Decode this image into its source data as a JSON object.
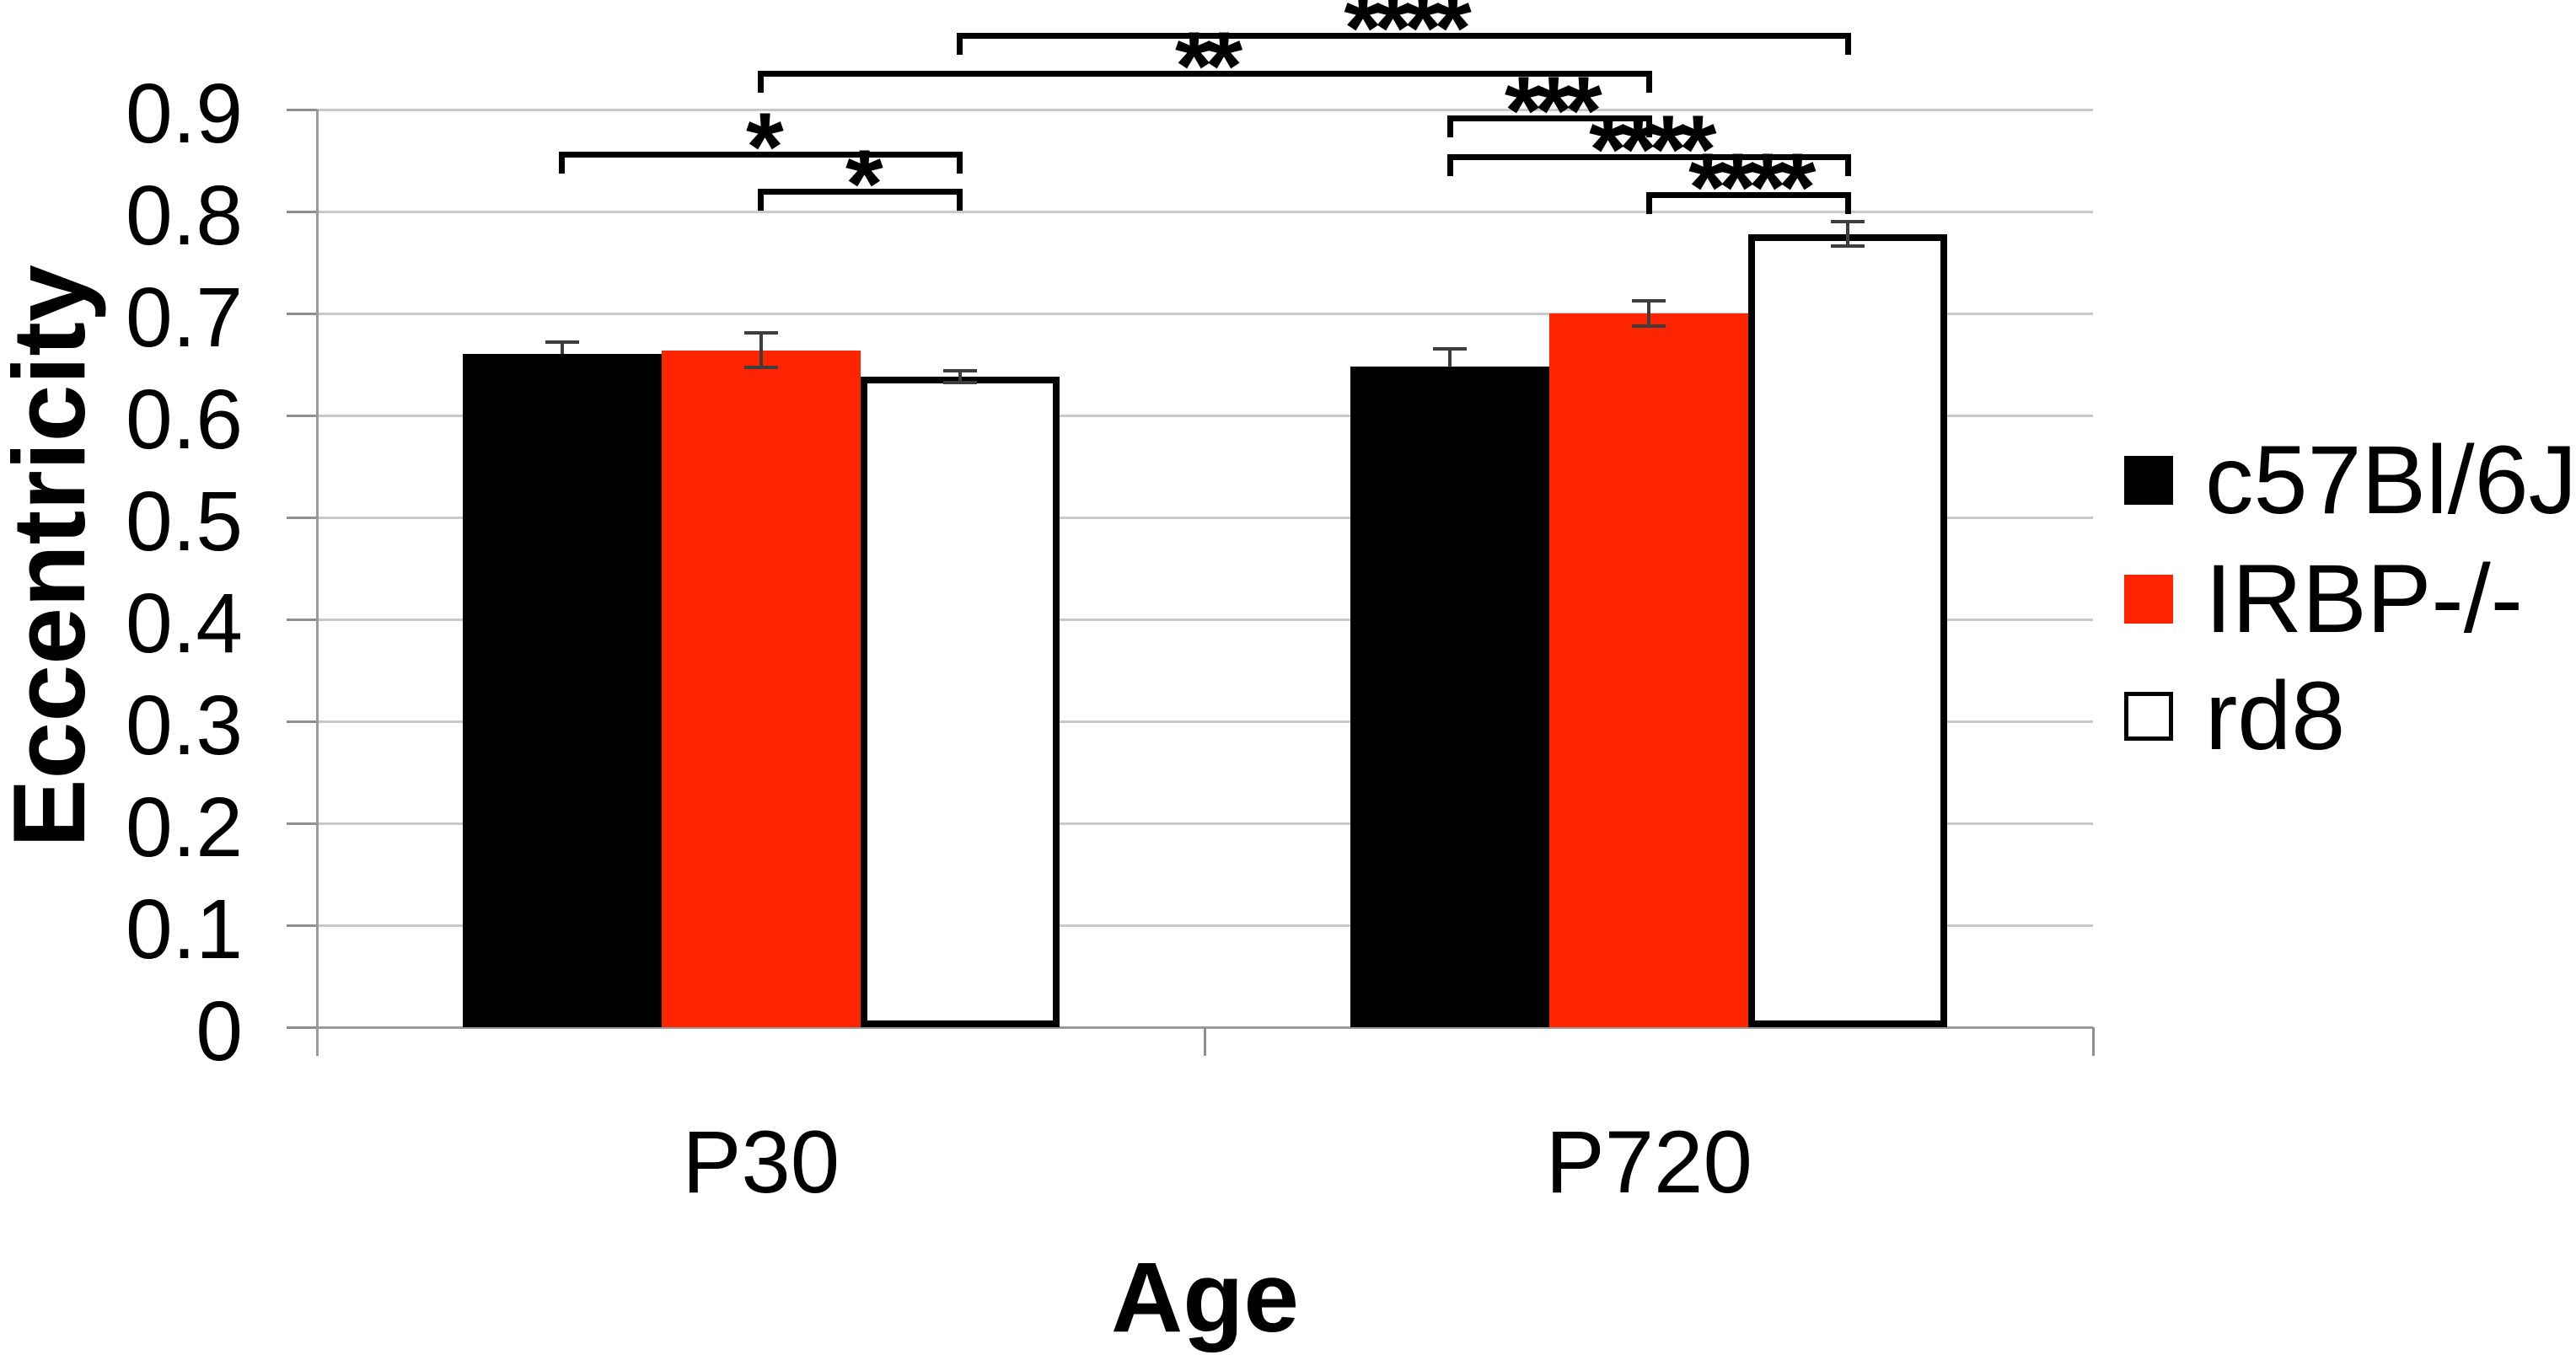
{
  "chart_data": {
    "type": "bar",
    "title": "",
    "xlabel": "Age",
    "ylabel": "Eccentricity",
    "categories": [
      "P30",
      "P720"
    ],
    "series": [
      {
        "name": "c57Bl/6J",
        "color": "#000000",
        "outline": "#000000",
        "values": [
          0.66,
          0.648
        ],
        "errors": [
          0.012,
          0.017
        ]
      },
      {
        "name": "IRBP-/-",
        "color": "#ff2400",
        "outline": "#ff2400",
        "values": [
          0.664,
          0.7
        ],
        "errors": [
          0.017,
          0.012
        ]
      },
      {
        "name": "rd8",
        "color": "#ffffff",
        "outline": "#000000",
        "values": [
          0.638,
          0.778
        ],
        "errors": [
          0.006,
          0.012
        ]
      }
    ],
    "ylim": [
      0,
      0.9
    ],
    "ytick_step": 0.1,
    "ytick_labels": [
      "0",
      "0.1",
      "0.2",
      "0.3",
      "0.4",
      "0.5",
      "0.6",
      "0.7",
      "0.8",
      "0.9"
    ],
    "grid": "horizontal",
    "legend_position": "right",
    "significance": [
      {
        "label": "*",
        "a": {
          "category": "P30",
          "series": "c57Bl/6J"
        },
        "b": {
          "category": "P30",
          "series": "rd8"
        }
      },
      {
        "label": "*",
        "a": {
          "category": "P30",
          "series": "IRBP-/-"
        },
        "b": {
          "category": "P30",
          "series": "rd8"
        }
      },
      {
        "label": "***",
        "a": {
          "category": "P720",
          "series": "c57Bl/6J"
        },
        "b": {
          "category": "P720",
          "series": "IRBP-/-"
        }
      },
      {
        "label": "****",
        "a": {
          "category": "P720",
          "series": "c57Bl/6J"
        },
        "b": {
          "category": "P720",
          "series": "rd8"
        }
      },
      {
        "label": "****",
        "a": {
          "category": "P720",
          "series": "IRBP-/-"
        },
        "b": {
          "category": "P720",
          "series": "rd8"
        }
      },
      {
        "label": "**",
        "a": {
          "category": "P30",
          "series": "IRBP-/-"
        },
        "b": {
          "category": "P720",
          "series": "IRBP-/-"
        }
      },
      {
        "label": "****",
        "a": {
          "category": "P30",
          "series": "rd8"
        },
        "b": {
          "category": "P720",
          "series": "rd8"
        }
      }
    ]
  }
}
